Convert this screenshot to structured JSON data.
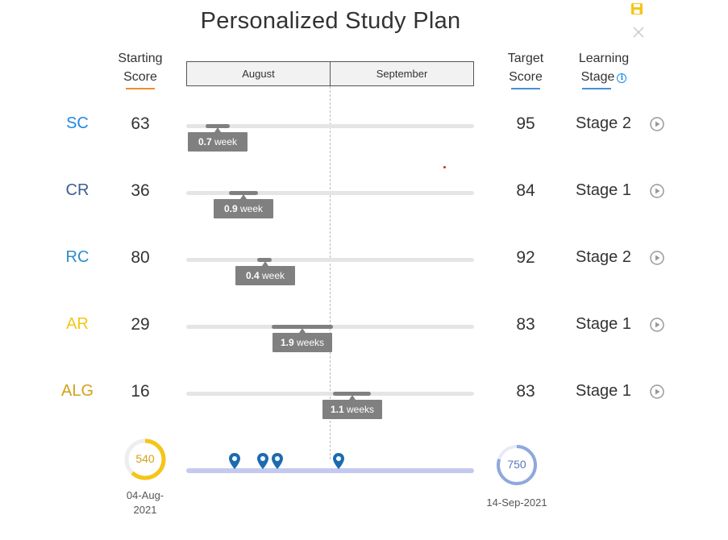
{
  "title": "Personalized Study Plan",
  "colors": {
    "sc": "#1e88e5",
    "cr": "#3a5f8f",
    "rc": "#2e8bc9",
    "ar": "#f5c518",
    "alg": "#d4a017",
    "accent_orange": "#f08c2e",
    "accent_blue": "#4a8fd8",
    "bar_gray": "#808080",
    "track_gray": "#e5e5e5",
    "pin_blue": "#1c6bb0",
    "ring_yellow": "#f5c518",
    "ring_blue": "#8fa8dc"
  },
  "icons": {
    "save": "save-icon",
    "close": "close-icon",
    "info": "info-icon",
    "play": "play-circle-icon",
    "pin": "map-pin-icon"
  },
  "headers": {
    "starting_l1": "Starting",
    "starting_l2": "Score",
    "target_l1": "Target",
    "target_l2": "Score",
    "learning_l1": "Learning",
    "learning_l2": "Stage",
    "info_glyph": "i"
  },
  "months": [
    "August",
    "September"
  ],
  "rows": [
    {
      "subject": "SC",
      "start": "63",
      "duration_num": "0.7",
      "duration_unit": "week",
      "target": "95",
      "stage": "Stage 2"
    },
    {
      "subject": "CR",
      "start": "36",
      "duration_num": "0.9",
      "duration_unit": "week",
      "target": "84",
      "stage": "Stage 1"
    },
    {
      "subject": "RC",
      "start": "80",
      "duration_num": "0.4",
      "duration_unit": "week",
      "target": "92",
      "stage": "Stage 2"
    },
    {
      "subject": "AR",
      "start": "29",
      "duration_num": "1.9",
      "duration_unit": "weeks",
      "target": "83",
      "stage": "Stage 1"
    },
    {
      "subject": "ALG",
      "start": "16",
      "duration_num": "1.1",
      "duration_unit": "weeks",
      "target": "83",
      "stage": "Stage 1"
    }
  ],
  "summary": {
    "start_score": "540",
    "start_date_l1": "04-Aug-",
    "start_date_l2": "2021",
    "start_progress": 0.62,
    "target_score": "750",
    "target_date": "14-Sep-2021",
    "target_progress": 0.8
  }
}
